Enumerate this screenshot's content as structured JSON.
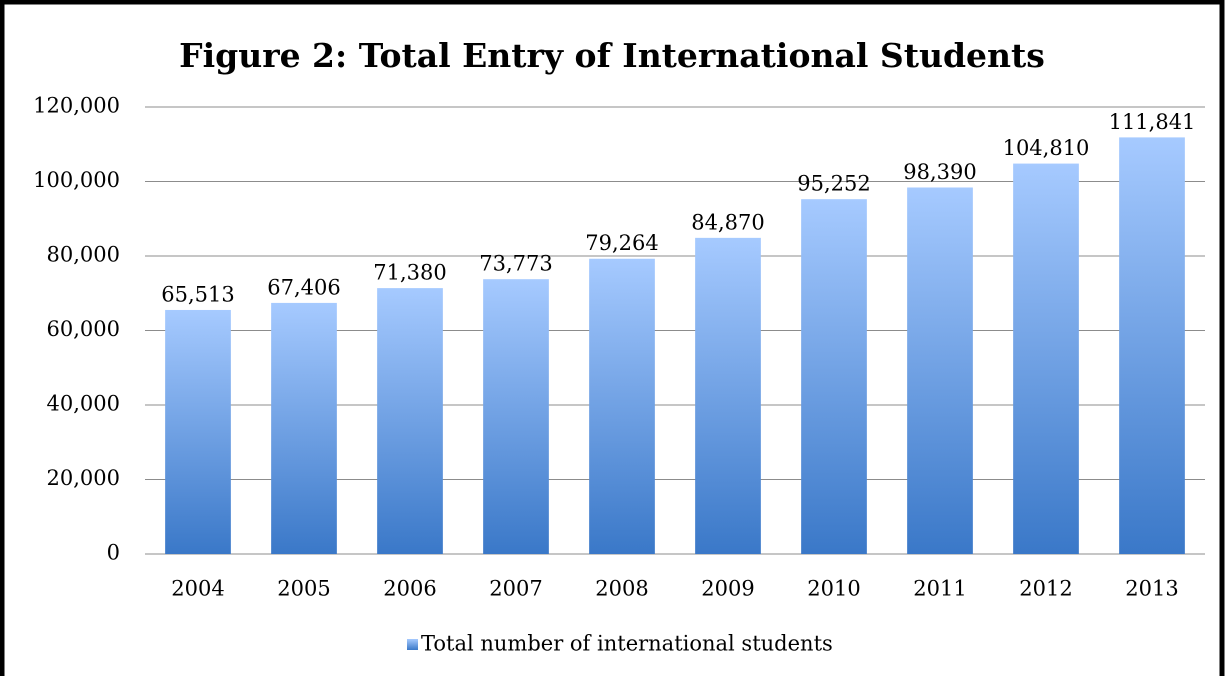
{
  "chart_data": {
    "type": "bar",
    "title": "Figure 2: Total Entry of International Students",
    "categories": [
      "2004",
      "2005",
      "2006",
      "2007",
      "2008",
      "2009",
      "2010",
      "2011",
      "2012",
      "2013"
    ],
    "series": [
      {
        "name": "Total number of international students",
        "gradient": [
          "#a6caff",
          "#3a78c8"
        ],
        "values": [
          65513,
          67406,
          71380,
          73773,
          79264,
          84870,
          95252,
          98390,
          104810,
          111841
        ],
        "value_labels": [
          "65,513",
          "67,406",
          "71,380",
          "73,773",
          "79,264",
          "84,870",
          "95,252",
          "98,390",
          "104,810",
          "111,841"
        ]
      }
    ],
    "ylim": [
      0,
      120000
    ],
    "yticks": [
      0,
      {
        "value": 20000,
        "label": "20,000"
      },
      {
        "value": 40000,
        "label": "40,000"
      },
      {
        "value": 60000,
        "label": "60,000"
      },
      {
        "value": 80000,
        "label": "80,000"
      },
      {
        "value": 100000,
        "label": "100,000"
      },
      {
        "value": 120000,
        "label": "120,000"
      }
    ],
    "grid": true,
    "legend": "bottom"
  }
}
